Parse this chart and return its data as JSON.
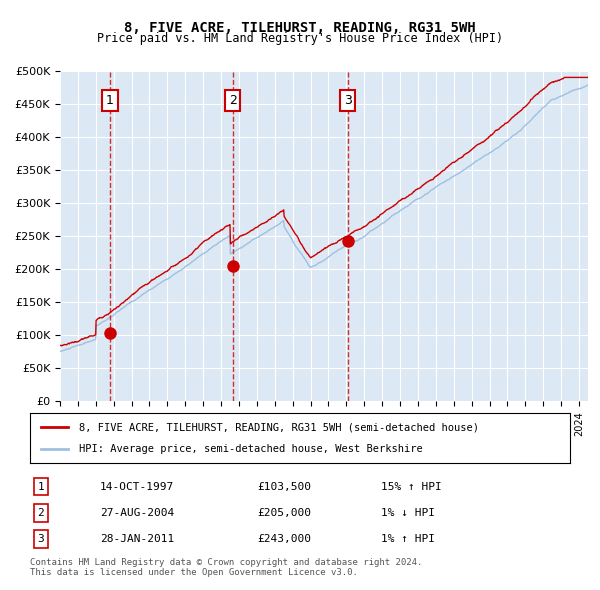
{
  "title": "8, FIVE ACRE, TILEHURST, READING, RG31 5WH",
  "subtitle": "Price paid vs. HM Land Registry's House Price Index (HPI)",
  "bg_color": "#dce9f5",
  "plot_bg_color": "#dce9f5",
  "hpi_color": "#a0c0e0",
  "price_color": "#cc0000",
  "marker_color": "#cc0000",
  "vline_color": "#cc0000",
  "label_box_color": "#cc0000",
  "grid_color": "#ffffff",
  "ylim": [
    0,
    500000
  ],
  "yticks": [
    0,
    50000,
    100000,
    150000,
    200000,
    250000,
    300000,
    350000,
    400000,
    450000,
    500000
  ],
  "sale_dates_num": [
    1997.79,
    2004.65,
    2011.07
  ],
  "sale_prices": [
    103500,
    205000,
    243000
  ],
  "sale_labels": [
    "1",
    "2",
    "3"
  ],
  "sale_info": [
    {
      "num": "1",
      "date": "14-OCT-1997",
      "price": "£103,500",
      "hpi": "15% ↑ HPI"
    },
    {
      "num": "2",
      "date": "27-AUG-2004",
      "price": "£205,000",
      "hpi": "1% ↓ HPI"
    },
    {
      "num": "3",
      "date": "28-JAN-2011",
      "price": "£243,000",
      "hpi": "1% ↑ HPI"
    }
  ],
  "legend_entries": [
    {
      "label": "8, FIVE ACRE, TILEHURST, READING, RG31 5WH (semi-detached house)",
      "color": "#cc0000"
    },
    {
      "label": "HPI: Average price, semi-detached house, West Berkshire",
      "color": "#a0c0e0"
    }
  ],
  "footnote": "Contains HM Land Registry data © Crown copyright and database right 2024.\nThis data is licensed under the Open Government Licence v3.0.",
  "xmin": 1995.0,
  "xmax": 2024.5
}
